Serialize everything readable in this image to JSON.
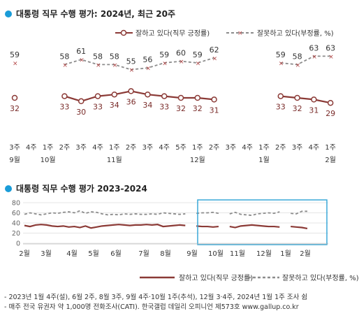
{
  "colors": {
    "approve": "#8b3a36",
    "disapprove": "#8c8c8c",
    "accent": "#1a9cd8",
    "highlight": "#3aa9d8"
  },
  "chart_data": [
    {
      "type": "line",
      "title": "대통령 직무 수행 평가: 2024년, 최근 20주",
      "categories": [
        {
          "week": "3주",
          "month": "9월"
        },
        {
          "week": "4주",
          "month": ""
        },
        {
          "week": "1주",
          "month": "10월"
        },
        {
          "week": "2주",
          "month": ""
        },
        {
          "week": "3주",
          "month": ""
        },
        {
          "week": "4주",
          "month": ""
        },
        {
          "week": "1주",
          "month": "11월"
        },
        {
          "week": "2주",
          "month": ""
        },
        {
          "week": "3주",
          "month": ""
        },
        {
          "week": "4주",
          "month": ""
        },
        {
          "week": "5주",
          "month": ""
        },
        {
          "week": "1주",
          "month": "12월"
        },
        {
          "week": "2주",
          "month": ""
        },
        {
          "week": "3주",
          "month": ""
        },
        {
          "week": "4주",
          "month": ""
        },
        {
          "week": "1주",
          "month": "1월"
        },
        {
          "week": "2주",
          "month": ""
        },
        {
          "week": "3주",
          "month": ""
        },
        {
          "week": "4주",
          "month": ""
        },
        {
          "week": "1주",
          "month": "2월"
        }
      ],
      "series": [
        {
          "name": "잘하고 있다(직무 긍정률)",
          "values": [
            32,
            null,
            null,
            33,
            30,
            33,
            34,
            36,
            34,
            33,
            32,
            32,
            31,
            null,
            null,
            null,
            33,
            32,
            31,
            29
          ]
        },
        {
          "name": "잘못하고 있다(부정률, %)",
          "values": [
            59,
            null,
            null,
            58,
            61,
            58,
            58,
            55,
            56,
            59,
            60,
            59,
            62,
            null,
            null,
            null,
            59,
            58,
            63,
            63
          ]
        }
      ]
    },
    {
      "type": "line",
      "title": "대통령 직무 수행 평가 2023-2024",
      "y_ticks": [
        "80",
        "60",
        "40",
        "20",
        "0"
      ],
      "ylim": [
        0,
        80
      ],
      "months": [
        "2월",
        "3월",
        "4월",
        "5월",
        "6월",
        "7월",
        "8월",
        "9월",
        "10월",
        "11월",
        "12월",
        "1월",
        "2월"
      ],
      "series": [
        {
          "name": "잘하고 있다(직무 긍정률)",
          "values": [
            35,
            33,
            36,
            37,
            36,
            34,
            33,
            34,
            32,
            33,
            31,
            34,
            30,
            32,
            34,
            35,
            36,
            37,
            36,
            35,
            36,
            36,
            37,
            36,
            37,
            33,
            34,
            35,
            36,
            35,
            null,
            34,
            33,
            33,
            32,
            33,
            null,
            33,
            31,
            34,
            35,
            36,
            35,
            34,
            33,
            33,
            32,
            null,
            33,
            32,
            31,
            29
          ]
        },
        {
          "name": "잘못하고 있다(부정률, %)",
          "values": [
            57,
            60,
            58,
            56,
            58,
            60,
            59,
            61,
            62,
            60,
            64,
            59,
            62,
            61,
            58,
            56,
            57,
            56,
            58,
            57,
            58,
            57,
            57,
            58,
            57,
            60,
            59,
            58,
            57,
            58,
            null,
            59,
            60,
            60,
            61,
            59,
            null,
            58,
            61,
            57,
            56,
            55,
            58,
            59,
            60,
            59,
            62,
            null,
            59,
            58,
            63,
            63
          ]
        }
      ]
    }
  ],
  "legend": {
    "approve": "잘하고 있다(직무 긍정률)",
    "disapprove": "잘못하고 있다(부정률, %)"
  },
  "footnotes": [
    "- 2023년 1월 4주(설), 6월 2주, 8월 3주, 9월 4주·10월 1주(추석), 12월 3·4주, 2024년 1월 1주 조사 쉼",
    "- 매주 전국 유권자 약 1,000명 전화조사(CATI). 한국갤럽 데일리 오피니언 제573호 www.gallup.co.kr"
  ]
}
